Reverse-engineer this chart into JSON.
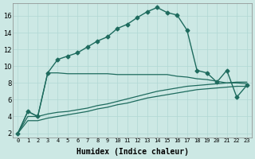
{
  "xlabel": "Humidex (Indice chaleur)",
  "background_color": "#cce8e4",
  "grid_color": "#b0d8d4",
  "line_color": "#1e6b5e",
  "xlim": [
    -0.5,
    23.5
  ],
  "ylim": [
    1.5,
    17.5
  ],
  "yticks": [
    2,
    4,
    6,
    8,
    10,
    12,
    14,
    16
  ],
  "xticks": [
    0,
    1,
    2,
    3,
    4,
    5,
    6,
    7,
    8,
    9,
    10,
    11,
    12,
    13,
    14,
    15,
    16,
    17,
    18,
    19,
    20,
    21,
    22,
    23
  ],
  "series": [
    {
      "x": [
        0,
        1,
        2,
        3,
        4,
        5,
        6,
        7,
        8,
        9,
        10,
        11,
        12,
        13,
        14,
        15,
        16,
        17,
        18,
        19,
        20,
        21,
        22,
        23
      ],
      "y": [
        2.0,
        4.6,
        4.0,
        9.2,
        10.8,
        11.2,
        11.6,
        12.3,
        13.0,
        13.5,
        14.5,
        15.0,
        15.8,
        16.5,
        17.0,
        16.4,
        16.1,
        14.3,
        9.5,
        9.2,
        8.1,
        9.5,
        6.3,
        7.7
      ],
      "marker": "D",
      "linewidth": 1.0,
      "markersize": 2.5,
      "linestyle": "-"
    },
    {
      "x": [
        0,
        1,
        2,
        3,
        4,
        5,
        6,
        7,
        8,
        9,
        10,
        11,
        12,
        13,
        14,
        15,
        16,
        17,
        18,
        19,
        20,
        21,
        22,
        23
      ],
      "y": [
        2.0,
        4.6,
        4.0,
        9.2,
        9.2,
        9.1,
        9.1,
        9.1,
        9.1,
        9.1,
        9.0,
        9.0,
        9.0,
        9.0,
        9.0,
        9.0,
        8.8,
        8.7,
        8.5,
        8.4,
        8.2,
        8.0,
        8.0,
        7.9
      ],
      "marker": null,
      "linewidth": 0.9,
      "markersize": 0,
      "linestyle": "-"
    },
    {
      "x": [
        0,
        1,
        2,
        3,
        4,
        5,
        6,
        7,
        8,
        9,
        10,
        11,
        12,
        13,
        14,
        15,
        16,
        17,
        18,
        19,
        20,
        21,
        22,
        23
      ],
      "y": [
        2.0,
        4.0,
        4.0,
        4.3,
        4.5,
        4.6,
        4.8,
        5.0,
        5.3,
        5.5,
        5.8,
        6.1,
        6.4,
        6.7,
        7.0,
        7.2,
        7.4,
        7.6,
        7.7,
        7.8,
        7.9,
        8.0,
        8.1,
        8.1
      ],
      "marker": null,
      "linewidth": 0.9,
      "markersize": 0,
      "linestyle": "-"
    },
    {
      "x": [
        0,
        1,
        2,
        3,
        4,
        5,
        6,
        7,
        8,
        9,
        10,
        11,
        12,
        13,
        14,
        15,
        16,
        17,
        18,
        19,
        20,
        21,
        22,
        23
      ],
      "y": [
        2.0,
        3.5,
        3.5,
        3.8,
        4.0,
        4.2,
        4.4,
        4.6,
        4.9,
        5.1,
        5.4,
        5.6,
        5.9,
        6.2,
        6.4,
        6.6,
        6.8,
        7.0,
        7.2,
        7.3,
        7.4,
        7.5,
        7.6,
        7.6
      ],
      "marker": null,
      "linewidth": 0.9,
      "markersize": 0,
      "linestyle": "-"
    }
  ]
}
